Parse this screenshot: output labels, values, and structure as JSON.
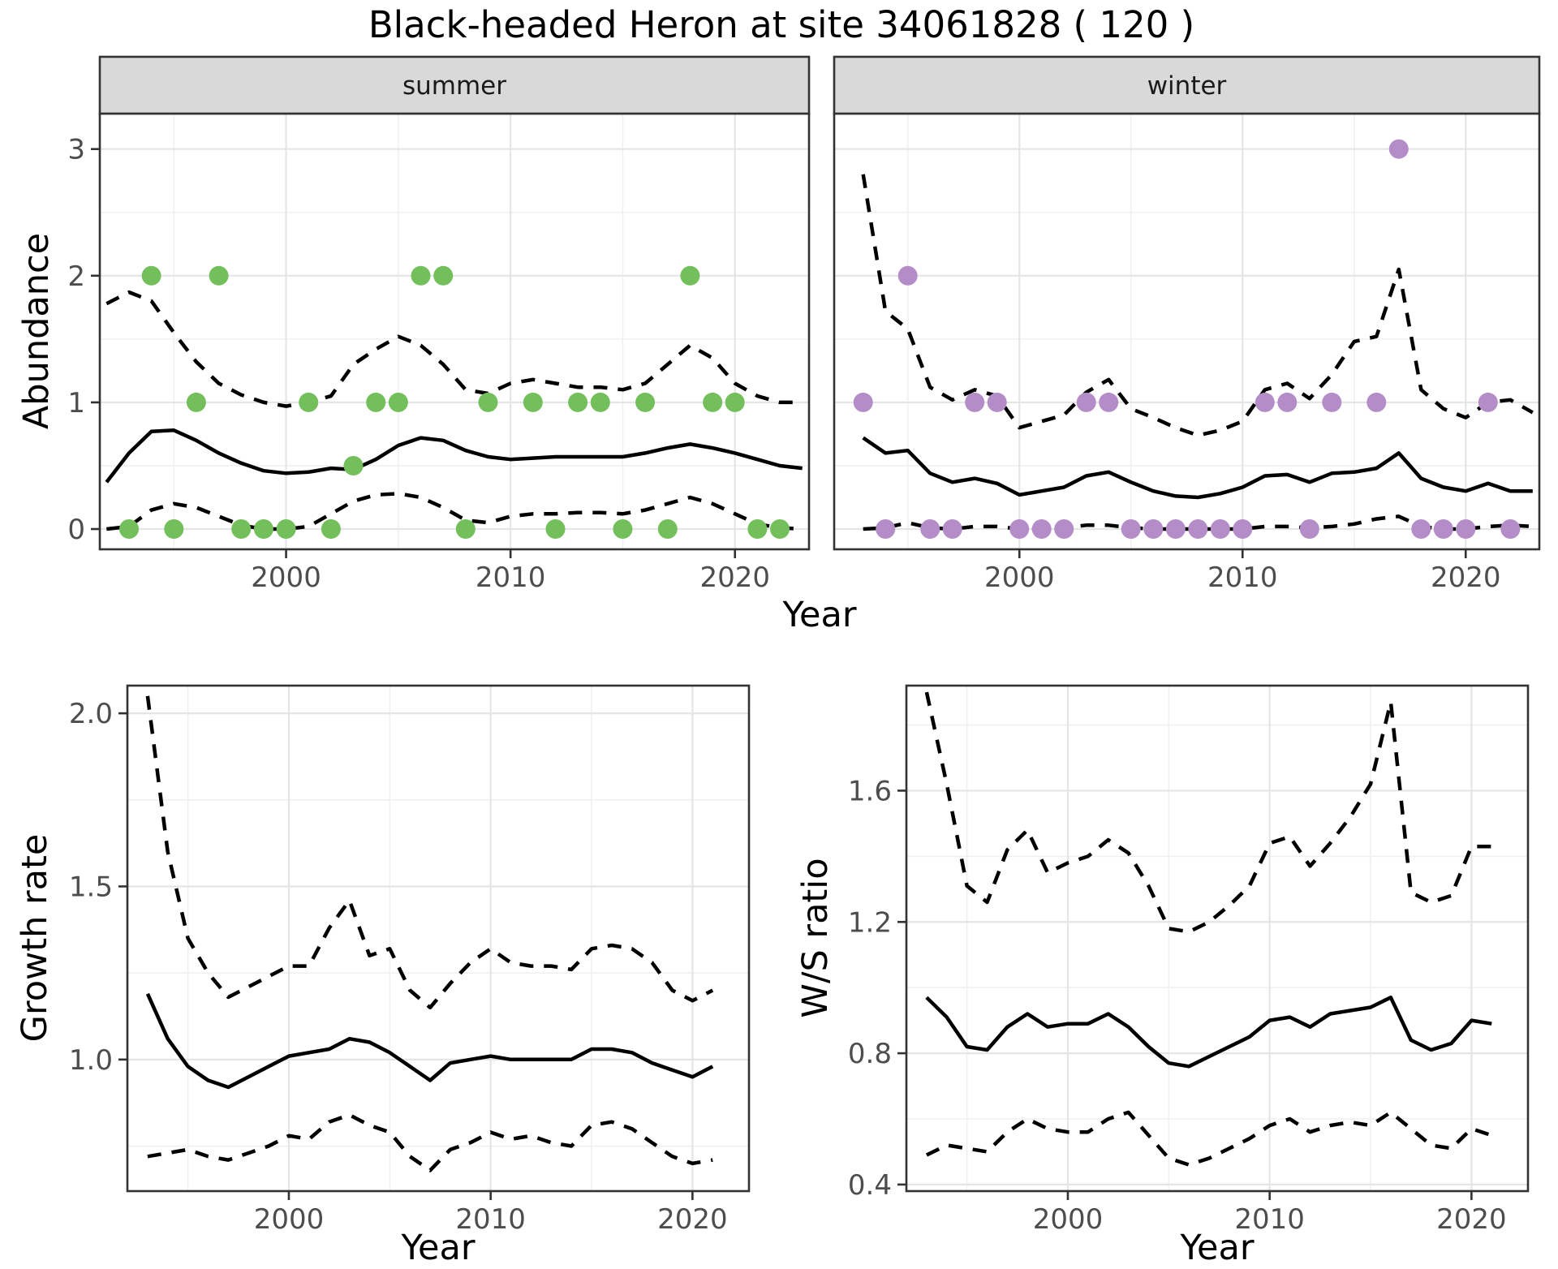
{
  "title": "Black-headed Heron at site 34061828 ( 120 )",
  "labels": {
    "abundance": "Abundance",
    "growth": "Growth rate",
    "ws": "W/S ratio",
    "year": "Year"
  },
  "colors": {
    "summer_point": "#72bf5b",
    "winter_point": "#b48cc8",
    "line": "#000000",
    "grid_major": "#e5e5e5",
    "grid_minor": "#f0f0f0",
    "strip_bg": "#d9d9d9",
    "panel_border": "#333333",
    "axis_text": "#4d4d4d"
  },
  "chart_data": [
    {
      "id": "abundance_summer",
      "type": "line",
      "facet_label": "summer",
      "ylabel": "Abundance",
      "xlabel": "Year",
      "legend": "none",
      "grid": true,
      "point_color": "#72bf5b",
      "xlim": [
        1991.7,
        2023.3
      ],
      "ylim": [
        -0.16,
        3.28
      ],
      "x_ticks": {
        "values": [
          2000,
          2010,
          2020
        ],
        "labels": [
          "2000",
          "2010",
          "2020"
        ]
      },
      "x_minor": [
        1995,
        2005,
        2015
      ],
      "y_ticks": {
        "values": [
          0,
          1,
          2,
          3
        ],
        "labels": [
          "0",
          "1",
          "2",
          "3"
        ]
      },
      "y_minor": [
        0.5,
        1.5,
        2.5
      ],
      "points": {
        "years": [
          1993,
          1994,
          1995,
          1996,
          1997,
          1998,
          1999,
          2000,
          2001,
          2002,
          2003,
          2004,
          2005,
          2006,
          2007,
          2008,
          2009,
          2011,
          2012,
          2013,
          2014,
          2015,
          2016,
          2017,
          2018,
          2019,
          2020,
          2021,
          2022
        ],
        "values": [
          0,
          2,
          0,
          1,
          2,
          0,
          0,
          0,
          1,
          0,
          0.5,
          1,
          1,
          2,
          2,
          0,
          1,
          1,
          0,
          1,
          1,
          0,
          1,
          0,
          2,
          1,
          1,
          0,
          0
        ]
      },
      "lines": {
        "median": {
          "style": "solid",
          "start_year": 1992,
          "values": [
            0.37,
            0.6,
            0.77,
            0.78,
            0.7,
            0.6,
            0.52,
            0.46,
            0.44,
            0.45,
            0.48,
            0.47,
            0.55,
            0.66,
            0.72,
            0.7,
            0.62,
            0.57,
            0.55,
            0.56,
            0.57,
            0.57,
            0.57,
            0.57,
            0.6,
            0.64,
            0.67,
            0.64,
            0.6,
            0.55,
            0.5,
            0.48
          ]
        },
        "upper": {
          "style": "dashed",
          "start_year": 1992,
          "values": [
            1.78,
            1.87,
            1.8,
            1.55,
            1.32,
            1.15,
            1.06,
            1.0,
            0.97,
            1.0,
            1.05,
            1.3,
            1.42,
            1.52,
            1.45,
            1.3,
            1.1,
            1.07,
            1.15,
            1.18,
            1.15,
            1.12,
            1.12,
            1.1,
            1.15,
            1.3,
            1.45,
            1.35,
            1.15,
            1.05,
            1.0,
            1.0
          ]
        },
        "lower": {
          "style": "dashed",
          "start_year": 1992,
          "values": [
            0.0,
            0.02,
            0.15,
            0.2,
            0.17,
            0.1,
            0.03,
            0.0,
            0.0,
            0.02,
            0.12,
            0.22,
            0.27,
            0.28,
            0.25,
            0.17,
            0.07,
            0.05,
            0.1,
            0.12,
            0.12,
            0.13,
            0.13,
            0.12,
            0.15,
            0.2,
            0.25,
            0.2,
            0.12,
            0.04,
            0.01,
            0.0
          ]
        }
      }
    },
    {
      "id": "abundance_winter",
      "type": "line",
      "facet_label": "winter",
      "ylabel": "Abundance",
      "xlabel": "Year",
      "legend": "none",
      "grid": true,
      "point_color": "#b48cc8",
      "xlim": [
        1991.7,
        2023.3
      ],
      "ylim": [
        -0.16,
        3.28
      ],
      "x_ticks": {
        "values": [
          2000,
          2010,
          2020
        ],
        "labels": [
          "2000",
          "2010",
          "2020"
        ]
      },
      "x_minor": [
        1995,
        2005,
        2015
      ],
      "y_ticks": {
        "values": [],
        "labels": []
      },
      "y_minor": [
        0.5,
        1.5,
        2.5
      ],
      "y_grid_major": [
        0,
        1,
        2,
        3
      ],
      "points": {
        "years": [
          1993,
          1994,
          1995,
          1996,
          1997,
          1998,
          1999,
          2000,
          2001,
          2002,
          2003,
          2004,
          2005,
          2006,
          2007,
          2008,
          2009,
          2010,
          2011,
          2012,
          2013,
          2014,
          2016,
          2017,
          2018,
          2019,
          2020,
          2021,
          2022
        ],
        "values": [
          1,
          0,
          2,
          0,
          0,
          1,
          1,
          0,
          0,
          0,
          1,
          1,
          0,
          0,
          0,
          0,
          0,
          0,
          1,
          1,
          0,
          1,
          1,
          3,
          0,
          0,
          0,
          1,
          0
        ]
      },
      "lines": {
        "median": {
          "style": "solid",
          "start_year": 1993,
          "values": [
            0.72,
            0.6,
            0.62,
            0.44,
            0.37,
            0.4,
            0.36,
            0.27,
            0.3,
            0.33,
            0.42,
            0.45,
            0.37,
            0.3,
            0.26,
            0.25,
            0.28,
            0.33,
            0.42,
            0.43,
            0.37,
            0.44,
            0.45,
            0.48,
            0.6,
            0.4,
            0.33,
            0.3,
            0.36,
            0.3,
            0.3
          ]
        },
        "upper": {
          "style": "dashed",
          "start_year": 1993,
          "values": [
            2.8,
            1.72,
            1.58,
            1.12,
            1.02,
            1.1,
            1.05,
            0.8,
            0.85,
            0.9,
            1.08,
            1.18,
            0.95,
            0.88,
            0.8,
            0.74,
            0.78,
            0.85,
            1.1,
            1.15,
            1.03,
            1.22,
            1.48,
            1.52,
            2.05,
            1.1,
            0.95,
            0.88,
            1.0,
            1.02,
            0.92
          ]
        },
        "lower": {
          "style": "dashed",
          "start_year": 1993,
          "values": [
            0.0,
            0.01,
            0.05,
            0.01,
            0.0,
            0.02,
            0.02,
            0.0,
            0.0,
            0.01,
            0.03,
            0.03,
            0.01,
            0.0,
            0.0,
            0.0,
            0.0,
            0.0,
            0.02,
            0.02,
            0.01,
            0.02,
            0.04,
            0.08,
            0.1,
            0.02,
            0.0,
            0.0,
            0.02,
            0.03,
            0.02
          ]
        }
      }
    },
    {
      "id": "growth",
      "type": "line",
      "facet_label": null,
      "ylabel": "Growth rate",
      "xlabel": "Year",
      "legend": "none",
      "grid": true,
      "xlim": [
        1992.0,
        2022.8
      ],
      "ylim": [
        0.62,
        2.08
      ],
      "x_ticks": {
        "values": [
          2000,
          2010,
          2020
        ],
        "labels": [
          "2000",
          "2010",
          "2020"
        ]
      },
      "x_minor": [
        1995,
        2005,
        2015
      ],
      "y_ticks": {
        "values": [
          1.0,
          1.5,
          2.0
        ],
        "labels": [
          "1.0",
          "1.5",
          "2.0"
        ]
      },
      "y_minor": [
        0.75,
        1.25,
        1.75
      ],
      "lines": {
        "median": {
          "style": "solid",
          "start_year": 1993,
          "values": [
            1.19,
            1.06,
            0.98,
            0.94,
            0.92,
            0.95,
            0.98,
            1.01,
            1.02,
            1.03,
            1.06,
            1.05,
            1.02,
            0.98,
            0.94,
            0.99,
            1.0,
            1.01,
            1.0,
            1.0,
            1.0,
            1.0,
            1.03,
            1.03,
            1.02,
            0.99,
            0.97,
            0.95,
            0.98
          ]
        },
        "upper": {
          "style": "dashed",
          "start_year": 1993,
          "values": [
            2.05,
            1.6,
            1.35,
            1.25,
            1.18,
            1.21,
            1.24,
            1.27,
            1.27,
            1.38,
            1.46,
            1.3,
            1.32,
            1.2,
            1.15,
            1.22,
            1.28,
            1.32,
            1.28,
            1.27,
            1.27,
            1.26,
            1.32,
            1.33,
            1.32,
            1.28,
            1.2,
            1.17,
            1.2
          ]
        },
        "lower": {
          "style": "dashed",
          "start_year": 1993,
          "values": [
            0.72,
            0.73,
            0.74,
            0.72,
            0.71,
            0.73,
            0.75,
            0.78,
            0.77,
            0.82,
            0.84,
            0.81,
            0.79,
            0.72,
            0.68,
            0.74,
            0.76,
            0.79,
            0.77,
            0.78,
            0.76,
            0.75,
            0.81,
            0.82,
            0.8,
            0.76,
            0.72,
            0.7,
            0.71
          ]
        }
      }
    },
    {
      "id": "ws",
      "type": "line",
      "facet_label": null,
      "ylabel": "W/S ratio",
      "xlabel": "Year",
      "legend": "none",
      "grid": true,
      "xlim": [
        1992.0,
        2022.8
      ],
      "ylim": [
        0.38,
        1.92
      ],
      "x_ticks": {
        "values": [
          2000,
          2010,
          2020
        ],
        "labels": [
          "2000",
          "2010",
          "2020"
        ]
      },
      "x_minor": [
        1995,
        2005,
        2015
      ],
      "y_ticks": {
        "values": [
          0.4,
          0.8,
          1.2,
          1.6
        ],
        "labels": [
          "0.4",
          "0.8",
          "1.2",
          "1.6"
        ]
      },
      "y_minor": [
        0.6,
        1.0,
        1.4,
        1.8
      ],
      "lines": {
        "median": {
          "style": "solid",
          "start_year": 1993,
          "values": [
            0.97,
            0.91,
            0.82,
            0.81,
            0.88,
            0.92,
            0.88,
            0.89,
            0.89,
            0.92,
            0.88,
            0.82,
            0.77,
            0.76,
            0.79,
            0.82,
            0.85,
            0.9,
            0.91,
            0.88,
            0.92,
            0.93,
            0.94,
            0.97,
            0.84,
            0.81,
            0.83,
            0.9,
            0.89
          ]
        },
        "upper": {
          "style": "dashed",
          "start_year": 1993,
          "values": [
            1.9,
            1.62,
            1.31,
            1.26,
            1.42,
            1.48,
            1.35,
            1.38,
            1.4,
            1.45,
            1.41,
            1.31,
            1.18,
            1.17,
            1.2,
            1.25,
            1.31,
            1.44,
            1.46,
            1.37,
            1.44,
            1.52,
            1.62,
            1.87,
            1.29,
            1.26,
            1.28,
            1.43,
            1.43
          ]
        },
        "lower": {
          "style": "dashed",
          "start_year": 1993,
          "values": [
            0.49,
            0.52,
            0.51,
            0.5,
            0.56,
            0.6,
            0.57,
            0.56,
            0.56,
            0.6,
            0.62,
            0.55,
            0.48,
            0.46,
            0.48,
            0.51,
            0.54,
            0.58,
            0.6,
            0.56,
            0.58,
            0.59,
            0.58,
            0.62,
            0.57,
            0.52,
            0.51,
            0.57,
            0.55
          ]
        }
      }
    }
  ]
}
